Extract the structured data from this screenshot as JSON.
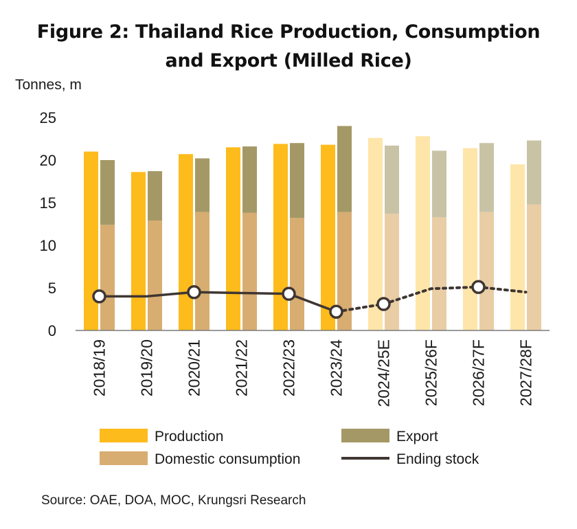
{
  "chart_data": {
    "type": "bar",
    "title_lines": [
      "Figure 2: Thailand Rice Production, Consumption",
      "and Export (Milled Rice)"
    ],
    "ylabel": "Tonnes, m",
    "ylim": [
      0,
      25
    ],
    "yticks": [
      0,
      5,
      10,
      15,
      20,
      25
    ],
    "categories": [
      "2018/19",
      "2019/20",
      "2020/21",
      "2021/22",
      "2022/23",
      "2023/24",
      "2024/25E",
      "2025/26F",
      "2026/27F",
      "2027/28F"
    ],
    "forecast_from_index": 6,
    "series": [
      {
        "name": "Production",
        "kind": "bar",
        "values": [
          21.0,
          18.6,
          20.7,
          21.5,
          21.9,
          21.8,
          22.6,
          22.8,
          21.4,
          19.5
        ]
      },
      {
        "name": "Domestic consumption",
        "kind": "stacked-bar-bottom",
        "values": [
          12.4,
          12.9,
          13.9,
          13.8,
          13.2,
          13.9,
          13.7,
          13.3,
          13.9,
          14.8
        ]
      },
      {
        "name": "Export",
        "kind": "stacked-bar-top",
        "values": [
          7.6,
          5.8,
          6.3,
          7.8,
          8.8,
          10.1,
          8.0,
          7.8,
          8.1,
          7.5
        ]
      },
      {
        "name": "Ending stock",
        "kind": "line",
        "values": [
          4.0,
          4.0,
          4.5,
          4.4,
          4.3,
          2.2,
          3.1,
          4.9,
          5.1,
          4.5
        ]
      }
    ],
    "legend": [
      {
        "name": "Production",
        "swatch": "box",
        "color": "#FDBB1C"
      },
      {
        "name": "Export",
        "swatch": "box",
        "color": "#A49966"
      },
      {
        "name": "Domestic consumption",
        "swatch": "box",
        "color": "#D8AD71"
      },
      {
        "name": "Ending stock",
        "swatch": "line",
        "color": "#3F3632"
      }
    ],
    "colors": {
      "production": "#FDBB1C",
      "production_forecast": "#FEE5A9",
      "consumption": "#D8AD71",
      "consumption_forecast": "#E8CDA5",
      "export": "#A49966",
      "export_forecast": "#C9C3A6",
      "stock_line": "#3F3632",
      "axis": "#7a7a7a"
    },
    "grid": false,
    "legend_position": "bottom",
    "source": "Source: OAE, DOA, MOC, Krungsri Research"
  }
}
